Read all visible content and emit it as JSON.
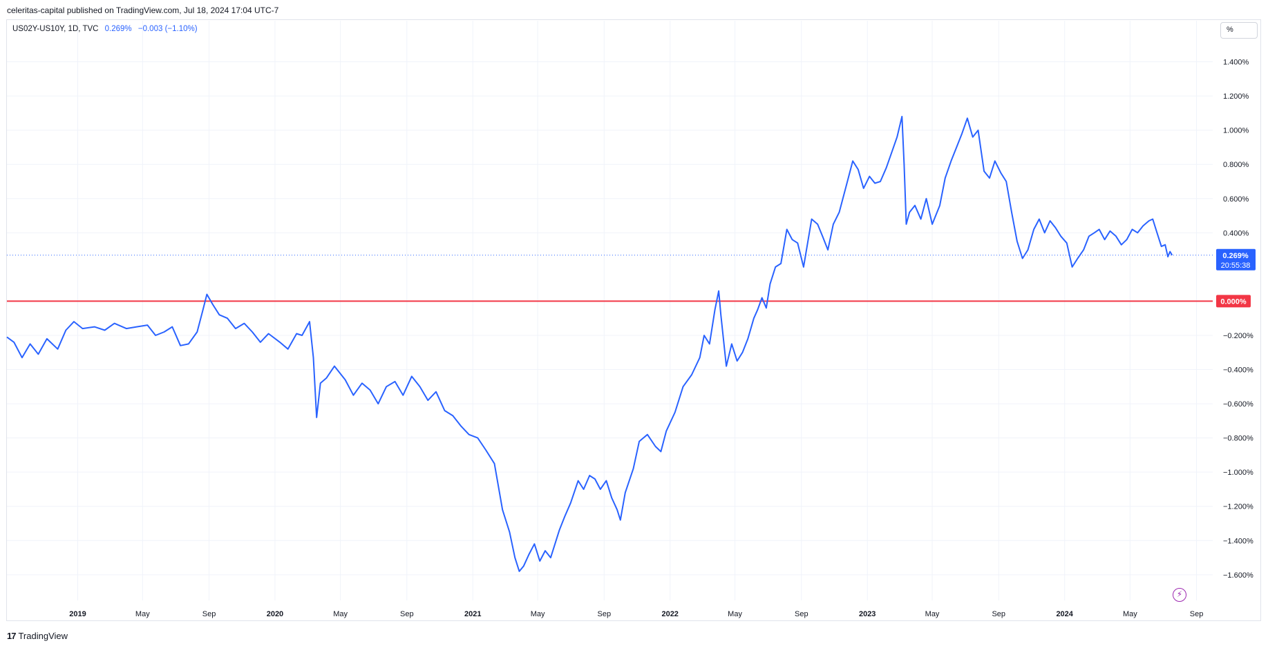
{
  "header": {
    "attribution": "celeritas-capital published on TradingView.com, Jul 18, 2024 17:04 UTC-7"
  },
  "legend": {
    "symbol": "US02Y-US10Y, 1D, TVC",
    "value": "0.269%",
    "change": "−0.003 (−1.10%)"
  },
  "unit_button": {
    "label": "%"
  },
  "footer": {
    "logo_text": "TradingView",
    "logo_mark": "17"
  },
  "colors": {
    "line": "#2962ff",
    "zero_line": "#f23645",
    "grid": "#f0f3fa",
    "text": "#131722"
  },
  "icons": {
    "lightning": "lightning-icon"
  },
  "chart_data": {
    "type": "line",
    "title": "",
    "xlabel": "",
    "ylabel": "",
    "y_unit": "%",
    "ylim": [
      -1.75,
      1.6
    ],
    "xlim": [
      "2018-08-23",
      "2024-10-01"
    ],
    "y_ticks": [
      1.4,
      1.2,
      1.0,
      0.8,
      0.6,
      0.4,
      -0.2,
      -0.4,
      -0.6,
      -0.8,
      -1.0,
      -1.2,
      -1.4,
      -1.6
    ],
    "y_tick_labels": [
      "1.400%",
      "1.200%",
      "1.000%",
      "0.800%",
      "0.600%",
      "0.400%",
      "−0.200%",
      "−0.400%",
      "−0.600%",
      "−0.800%",
      "−1.000%",
      "−1.200%",
      "−1.400%",
      "−1.600%"
    ],
    "x_ticks": [
      {
        "date": "2019-01-01",
        "label": "2019",
        "bold": true
      },
      {
        "date": "2019-05-01",
        "label": "May",
        "bold": false
      },
      {
        "date": "2019-09-01",
        "label": "Sep",
        "bold": false
      },
      {
        "date": "2020-01-01",
        "label": "2020",
        "bold": true
      },
      {
        "date": "2020-05-01",
        "label": "May",
        "bold": false
      },
      {
        "date": "2020-09-01",
        "label": "Sep",
        "bold": false
      },
      {
        "date": "2021-01-01",
        "label": "2021",
        "bold": true
      },
      {
        "date": "2021-05-01",
        "label": "May",
        "bold": false
      },
      {
        "date": "2021-09-01",
        "label": "Sep",
        "bold": false
      },
      {
        "date": "2022-01-01",
        "label": "2022",
        "bold": true
      },
      {
        "date": "2022-05-01",
        "label": "May",
        "bold": false
      },
      {
        "date": "2022-09-01",
        "label": "Sep",
        "bold": false
      },
      {
        "date": "2023-01-01",
        "label": "2023",
        "bold": true
      },
      {
        "date": "2023-05-01",
        "label": "May",
        "bold": false
      },
      {
        "date": "2023-09-01",
        "label": "Sep",
        "bold": false
      },
      {
        "date": "2024-01-01",
        "label": "2024",
        "bold": true
      },
      {
        "date": "2024-05-01",
        "label": "May",
        "bold": false
      },
      {
        "date": "2024-09-01",
        "label": "Sep",
        "bold": false
      }
    ],
    "zero_line": {
      "value": 0.0,
      "label": "0.000%"
    },
    "last_price": {
      "value": 0.269,
      "label": "0.269%",
      "countdown": "20:55:38"
    },
    "series": [
      {
        "values": [
          [
            "2018-08-23",
            -0.21
          ],
          [
            "2018-09-05",
            -0.24
          ],
          [
            "2018-09-20",
            -0.33
          ],
          [
            "2018-10-05",
            -0.25
          ],
          [
            "2018-10-20",
            -0.31
          ],
          [
            "2018-11-05",
            -0.22
          ],
          [
            "2018-11-25",
            -0.28
          ],
          [
            "2018-12-10",
            -0.17
          ],
          [
            "2018-12-25",
            -0.12
          ],
          [
            "2019-01-10",
            -0.16
          ],
          [
            "2019-02-01",
            -0.15
          ],
          [
            "2019-02-20",
            -0.17
          ],
          [
            "2019-03-10",
            -0.13
          ],
          [
            "2019-04-01",
            -0.16
          ],
          [
            "2019-04-20",
            -0.15
          ],
          [
            "2019-05-10",
            -0.14
          ],
          [
            "2019-05-25",
            -0.2
          ],
          [
            "2019-06-10",
            -0.18
          ],
          [
            "2019-06-25",
            -0.15
          ],
          [
            "2019-07-10",
            -0.26
          ],
          [
            "2019-07-25",
            -0.25
          ],
          [
            "2019-08-10",
            -0.18
          ],
          [
            "2019-08-20",
            -0.06
          ],
          [
            "2019-08-28",
            0.04
          ],
          [
            "2019-09-08",
            -0.02
          ],
          [
            "2019-09-20",
            -0.08
          ],
          [
            "2019-10-05",
            -0.1
          ],
          [
            "2019-10-20",
            -0.16
          ],
          [
            "2019-11-05",
            -0.13
          ],
          [
            "2019-11-20",
            -0.18
          ],
          [
            "2019-12-05",
            -0.24
          ],
          [
            "2019-12-20",
            -0.19
          ],
          [
            "2020-01-10",
            -0.24
          ],
          [
            "2020-01-25",
            -0.28
          ],
          [
            "2020-02-10",
            -0.19
          ],
          [
            "2020-02-20",
            -0.2
          ],
          [
            "2020-03-05",
            -0.12
          ],
          [
            "2020-03-12",
            -0.33
          ],
          [
            "2020-03-18",
            -0.68
          ],
          [
            "2020-03-25",
            -0.48
          ],
          [
            "2020-04-05",
            -0.45
          ],
          [
            "2020-04-20",
            -0.38
          ],
          [
            "2020-05-10",
            -0.46
          ],
          [
            "2020-05-25",
            -0.55
          ],
          [
            "2020-06-10",
            -0.48
          ],
          [
            "2020-06-25",
            -0.52
          ],
          [
            "2020-07-10",
            -0.6
          ],
          [
            "2020-07-25",
            -0.5
          ],
          [
            "2020-08-10",
            -0.47
          ],
          [
            "2020-08-25",
            -0.55
          ],
          [
            "2020-09-10",
            -0.44
          ],
          [
            "2020-09-25",
            -0.5
          ],
          [
            "2020-10-10",
            -0.58
          ],
          [
            "2020-10-25",
            -0.53
          ],
          [
            "2020-11-10",
            -0.64
          ],
          [
            "2020-11-25",
            -0.67
          ],
          [
            "2020-12-10",
            -0.73
          ],
          [
            "2020-12-25",
            -0.78
          ],
          [
            "2021-01-10",
            -0.8
          ],
          [
            "2021-01-25",
            -0.87
          ],
          [
            "2021-02-10",
            -0.95
          ],
          [
            "2021-02-25",
            -1.22
          ],
          [
            "2021-03-10",
            -1.35
          ],
          [
            "2021-03-20",
            -1.5
          ],
          [
            "2021-03-28",
            -1.58
          ],
          [
            "2021-04-05",
            -1.55
          ],
          [
            "2021-04-15",
            -1.48
          ],
          [
            "2021-04-25",
            -1.42
          ],
          [
            "2021-05-05",
            -1.52
          ],
          [
            "2021-05-15",
            -1.46
          ],
          [
            "2021-05-25",
            -1.5
          ],
          [
            "2021-06-10",
            -1.34
          ],
          [
            "2021-06-20",
            -1.26
          ],
          [
            "2021-07-01",
            -1.18
          ],
          [
            "2021-07-15",
            -1.05
          ],
          [
            "2021-07-25",
            -1.1
          ],
          [
            "2021-08-05",
            -1.02
          ],
          [
            "2021-08-15",
            -1.04
          ],
          [
            "2021-08-25",
            -1.1
          ],
          [
            "2021-09-05",
            -1.05
          ],
          [
            "2021-09-15",
            -1.15
          ],
          [
            "2021-09-25",
            -1.22
          ],
          [
            "2021-10-01",
            -1.28
          ],
          [
            "2021-10-10",
            -1.12
          ],
          [
            "2021-10-25",
            -0.98
          ],
          [
            "2021-11-05",
            -0.82
          ],
          [
            "2021-11-20",
            -0.78
          ],
          [
            "2021-12-05",
            -0.85
          ],
          [
            "2021-12-15",
            -0.88
          ],
          [
            "2021-12-25",
            -0.76
          ],
          [
            "2022-01-10",
            -0.65
          ],
          [
            "2022-01-25",
            -0.5
          ],
          [
            "2022-02-10",
            -0.43
          ],
          [
            "2022-02-25",
            -0.33
          ],
          [
            "2022-03-05",
            -0.2
          ],
          [
            "2022-03-15",
            -0.25
          ],
          [
            "2022-03-25",
            -0.05
          ],
          [
            "2022-04-01",
            0.06
          ],
          [
            "2022-04-05",
            -0.08
          ],
          [
            "2022-04-15",
            -0.38
          ],
          [
            "2022-04-25",
            -0.25
          ],
          [
            "2022-05-05",
            -0.35
          ],
          [
            "2022-05-15",
            -0.3
          ],
          [
            "2022-05-25",
            -0.22
          ],
          [
            "2022-06-05",
            -0.1
          ],
          [
            "2022-06-12",
            -0.05
          ],
          [
            "2022-06-20",
            0.02
          ],
          [
            "2022-06-28",
            -0.04
          ],
          [
            "2022-07-05",
            0.1
          ],
          [
            "2022-07-15",
            0.2
          ],
          [
            "2022-07-25",
            0.22
          ],
          [
            "2022-08-05",
            0.42
          ],
          [
            "2022-08-15",
            0.36
          ],
          [
            "2022-08-25",
            0.34
          ],
          [
            "2022-09-05",
            0.2
          ],
          [
            "2022-09-20",
            0.48
          ],
          [
            "2022-10-01",
            0.45
          ],
          [
            "2022-10-10",
            0.38
          ],
          [
            "2022-10-20",
            0.3
          ],
          [
            "2022-10-30",
            0.45
          ],
          [
            "2022-11-10",
            0.52
          ],
          [
            "2022-11-25",
            0.7
          ],
          [
            "2022-12-05",
            0.82
          ],
          [
            "2022-12-15",
            0.77
          ],
          [
            "2022-12-25",
            0.66
          ],
          [
            "2023-01-05",
            0.73
          ],
          [
            "2023-01-15",
            0.69
          ],
          [
            "2023-01-25",
            0.7
          ],
          [
            "2023-02-05",
            0.78
          ],
          [
            "2023-02-15",
            0.87
          ],
          [
            "2023-02-25",
            0.96
          ],
          [
            "2023-03-06",
            1.08
          ],
          [
            "2023-03-10",
            0.8
          ],
          [
            "2023-03-14",
            0.45
          ],
          [
            "2023-03-20",
            0.52
          ],
          [
            "2023-03-30",
            0.56
          ],
          [
            "2023-04-10",
            0.48
          ],
          [
            "2023-04-20",
            0.6
          ],
          [
            "2023-05-01",
            0.45
          ],
          [
            "2023-05-15",
            0.56
          ],
          [
            "2023-05-25",
            0.72
          ],
          [
            "2023-06-05",
            0.82
          ],
          [
            "2023-06-15",
            0.9
          ],
          [
            "2023-06-25",
            0.98
          ],
          [
            "2023-07-05",
            1.07
          ],
          [
            "2023-07-15",
            0.96
          ],
          [
            "2023-07-25",
            1.0
          ],
          [
            "2023-08-05",
            0.76
          ],
          [
            "2023-08-15",
            0.72
          ],
          [
            "2023-08-25",
            0.82
          ],
          [
            "2023-09-05",
            0.75
          ],
          [
            "2023-09-15",
            0.7
          ],
          [
            "2023-09-25",
            0.52
          ],
          [
            "2023-10-05",
            0.35
          ],
          [
            "2023-10-15",
            0.25
          ],
          [
            "2023-10-25",
            0.3
          ],
          [
            "2023-11-05",
            0.42
          ],
          [
            "2023-11-15",
            0.48
          ],
          [
            "2023-11-25",
            0.4
          ],
          [
            "2023-12-05",
            0.47
          ],
          [
            "2023-12-15",
            0.43
          ],
          [
            "2023-12-25",
            0.38
          ],
          [
            "2024-01-05",
            0.34
          ],
          [
            "2024-01-15",
            0.2
          ],
          [
            "2024-01-25",
            0.25
          ],
          [
            "2024-02-05",
            0.3
          ],
          [
            "2024-02-15",
            0.38
          ],
          [
            "2024-02-25",
            0.4
          ],
          [
            "2024-03-05",
            0.42
          ],
          [
            "2024-03-15",
            0.36
          ],
          [
            "2024-03-25",
            0.41
          ],
          [
            "2024-04-05",
            0.38
          ],
          [
            "2024-04-15",
            0.33
          ],
          [
            "2024-04-25",
            0.36
          ],
          [
            "2024-05-05",
            0.42
          ],
          [
            "2024-05-15",
            0.4
          ],
          [
            "2024-05-25",
            0.44
          ],
          [
            "2024-06-05",
            0.47
          ],
          [
            "2024-06-12",
            0.48
          ],
          [
            "2024-06-20",
            0.4
          ],
          [
            "2024-06-28",
            0.32
          ],
          [
            "2024-07-05",
            0.33
          ],
          [
            "2024-07-10",
            0.26
          ],
          [
            "2024-07-14",
            0.29
          ],
          [
            "2024-07-18",
            0.269
          ]
        ]
      }
    ]
  }
}
